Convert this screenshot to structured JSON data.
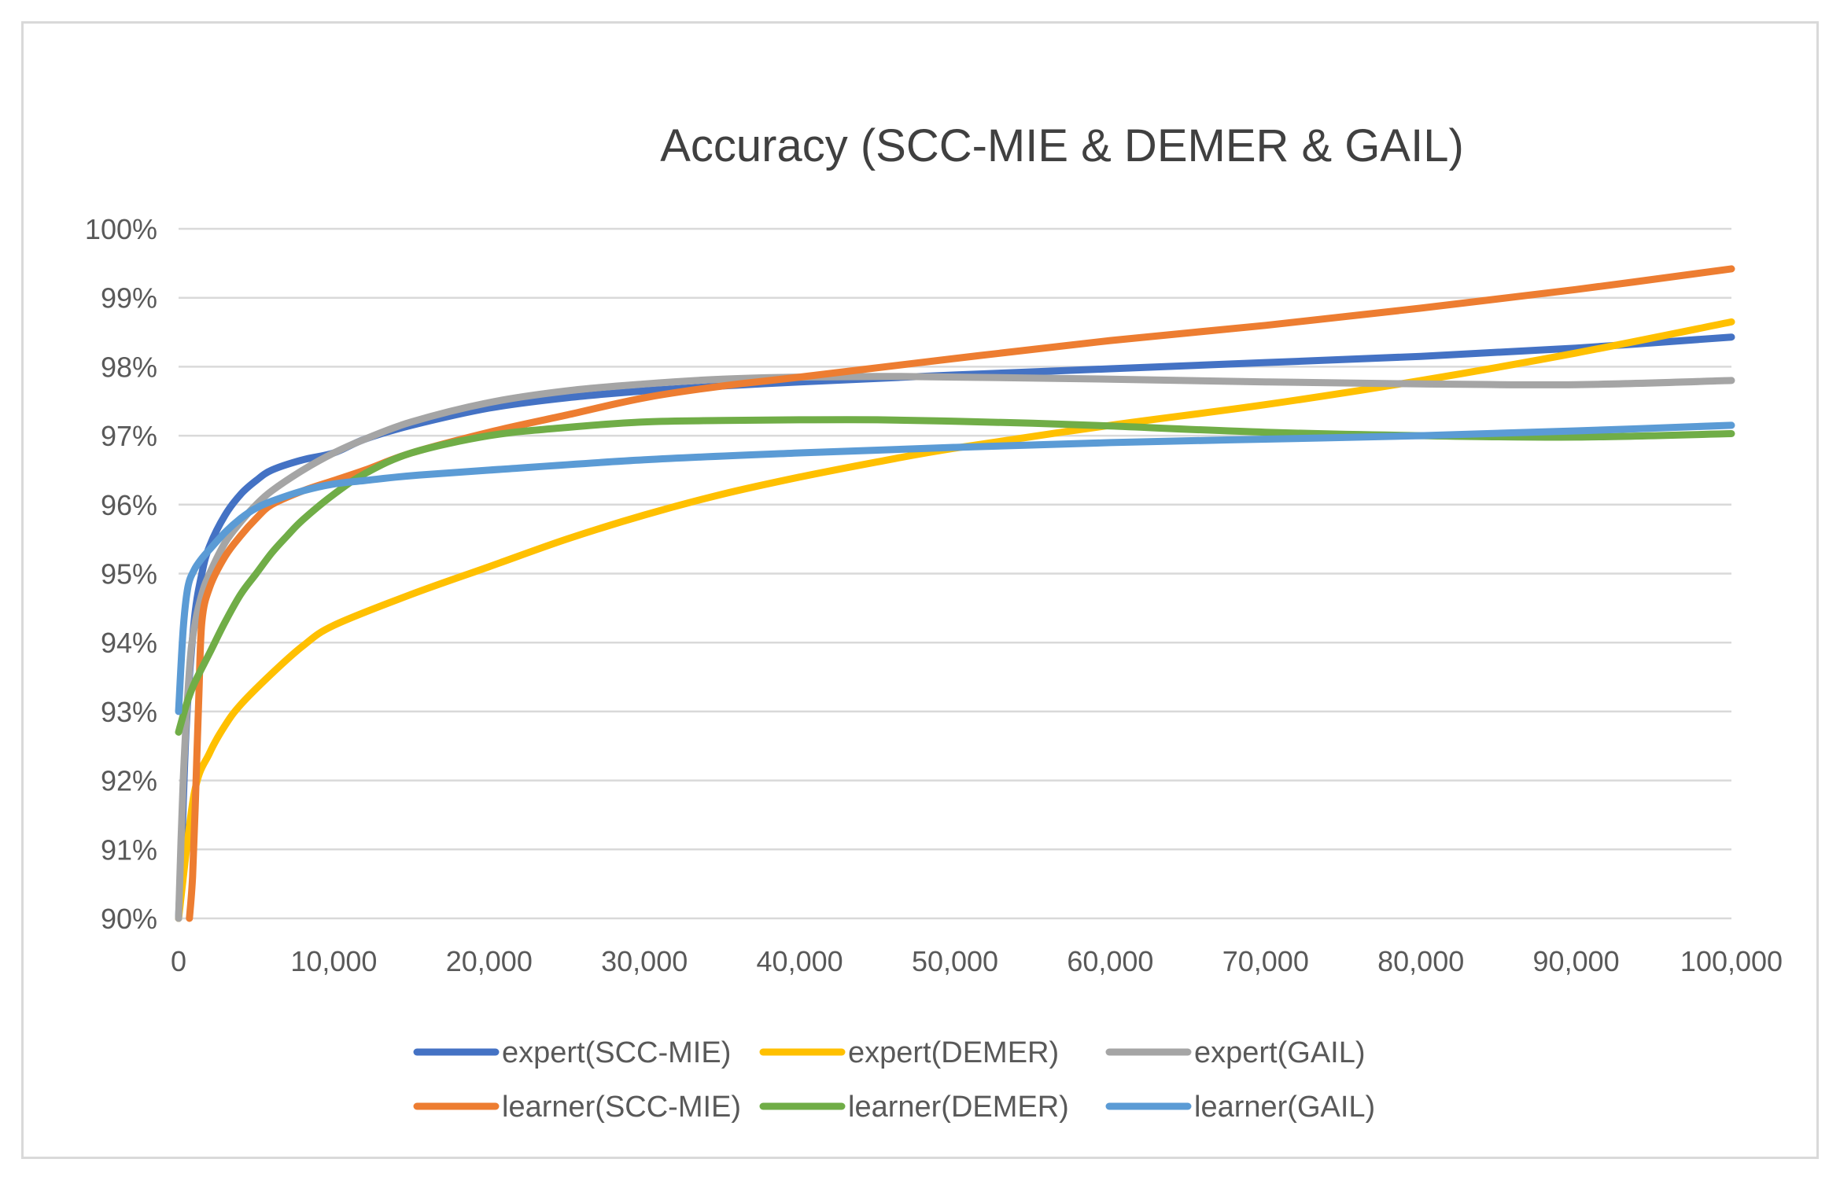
{
  "chart_data": {
    "type": "line",
    "title": "Accuracy (SCC-MIE & DEMER & GAIL)",
    "xlabel": "",
    "ylabel": "",
    "xlim": [
      0,
      100000
    ],
    "ylim": [
      90,
      100
    ],
    "x_ticks": [
      0,
      10000,
      20000,
      30000,
      40000,
      50000,
      60000,
      70000,
      80000,
      90000,
      100000
    ],
    "x_tick_labels": [
      "0",
      "10,000",
      "20,000",
      "30,000",
      "40,000",
      "50,000",
      "60,000",
      "70,000",
      "80,000",
      "90,000",
      "100,000"
    ],
    "y_ticks": [
      90,
      91,
      92,
      93,
      94,
      95,
      96,
      97,
      98,
      99,
      100
    ],
    "y_tick_labels": [
      "90%",
      "91%",
      "92%",
      "93%",
      "94%",
      "95%",
      "96%",
      "97%",
      "98%",
      "99%",
      "100%"
    ],
    "grid": true,
    "legend_position": "bottom",
    "series": [
      {
        "name": "expert(SCC-MIE)",
        "color": "#4472c4",
        "x": [
          0,
          200,
          500,
          1000,
          1500,
          2000,
          3000,
          4000,
          5000,
          6000,
          8000,
          10000,
          12000,
          15000,
          20000,
          25000,
          30000,
          35000,
          40000,
          50000,
          60000,
          70000,
          80000,
          90000,
          100000
        ],
        "y": [
          90.0,
          91.0,
          92.8,
          94.3,
          95.0,
          95.4,
          95.85,
          96.15,
          96.35,
          96.5,
          96.65,
          96.75,
          96.95,
          97.15,
          97.4,
          97.55,
          97.65,
          97.72,
          97.78,
          97.88,
          97.97,
          98.06,
          98.15,
          98.27,
          98.43
        ]
      },
      {
        "name": "expert(DEMER)",
        "color": "#ffc000",
        "x": [
          0,
          1000,
          2000,
          3000,
          4000,
          6000,
          8000,
          10000,
          15000,
          20000,
          25000,
          30000,
          35000,
          40000,
          45000,
          50000,
          60000,
          70000,
          80000,
          90000,
          100000
        ],
        "y": [
          90.0,
          91.8,
          92.4,
          92.8,
          93.1,
          93.55,
          93.95,
          94.25,
          94.7,
          95.1,
          95.5,
          95.85,
          96.15,
          96.4,
          96.62,
          96.82,
          97.15,
          97.45,
          97.8,
          98.2,
          98.65
        ]
      },
      {
        "name": "expert(GAIL)",
        "color": "#a5a5a5",
        "x": [
          0,
          300,
          700,
          1000,
          1500,
          2000,
          3000,
          4000,
          5000,
          6000,
          8000,
          10000,
          12000,
          15000,
          20000,
          25000,
          30000,
          35000,
          40000,
          45000,
          50000,
          60000,
          70000,
          80000,
          90000,
          100000
        ],
        "y": [
          90.0,
          92.0,
          93.6,
          94.2,
          94.7,
          95.0,
          95.45,
          95.75,
          96.0,
          96.2,
          96.5,
          96.75,
          96.95,
          97.2,
          97.48,
          97.65,
          97.75,
          97.82,
          97.85,
          97.86,
          97.85,
          97.82,
          97.78,
          97.75,
          97.74,
          97.8
        ]
      },
      {
        "name": "learner(SCC-MIE)",
        "color": "#ed7d31",
        "x": [
          700,
          900,
          1100,
          1300,
          1500,
          2000,
          3000,
          4000,
          5000,
          6000,
          8000,
          10000,
          12000,
          15000,
          20000,
          25000,
          30000,
          35000,
          40000,
          50000,
          60000,
          70000,
          80000,
          90000,
          100000
        ],
        "y": [
          90.0,
          90.6,
          91.8,
          93.2,
          94.3,
          94.8,
          95.25,
          95.55,
          95.8,
          96.0,
          96.2,
          96.35,
          96.5,
          96.75,
          97.05,
          97.3,
          97.55,
          97.72,
          97.85,
          98.12,
          98.38,
          98.6,
          98.85,
          99.12,
          99.42
        ]
      },
      {
        "name": "learner(DEMER)",
        "color": "#70ad47",
        "x": [
          0,
          500,
          1000,
          2000,
          3000,
          4000,
          5000,
          6000,
          7000,
          8000,
          10000,
          12000,
          15000,
          20000,
          25000,
          30000,
          35000,
          40000,
          45000,
          50000,
          55000,
          60000,
          70000,
          80000,
          90000,
          100000
        ],
        "y": [
          92.7,
          93.1,
          93.4,
          93.85,
          94.3,
          94.7,
          95.0,
          95.3,
          95.55,
          95.78,
          96.15,
          96.45,
          96.75,
          97.0,
          97.12,
          97.2,
          97.22,
          97.23,
          97.23,
          97.21,
          97.18,
          97.14,
          97.05,
          97.0,
          96.98,
          97.03
        ]
      },
      {
        "name": "learner(GAIL)",
        "color": "#5b9bd5",
        "x": [
          0,
          300,
          600,
          1000,
          1500,
          2000,
          3000,
          4000,
          5000,
          6000,
          8000,
          10000,
          12000,
          15000,
          20000,
          30000,
          40000,
          50000,
          60000,
          70000,
          80000,
          90000,
          100000
        ],
        "y": [
          93.0,
          94.2,
          94.8,
          95.05,
          95.22,
          95.35,
          95.6,
          95.8,
          95.95,
          96.05,
          96.2,
          96.3,
          96.35,
          96.42,
          96.5,
          96.65,
          96.75,
          96.83,
          96.9,
          96.95,
          97.0,
          97.07,
          97.15
        ]
      }
    ]
  }
}
